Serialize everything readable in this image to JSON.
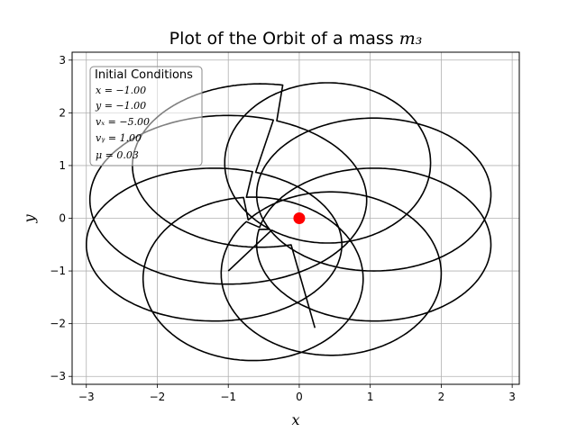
{
  "chart_data": {
    "type": "line",
    "title": "Plot of the Orbit of a mass ",
    "title_math": "m₃",
    "xlabel": "x",
    "ylabel": "y",
    "xlim": [
      -3.2,
      3.1
    ],
    "ylim": [
      -3.15,
      3.15
    ],
    "xticks": [
      -3,
      -2,
      -1,
      0,
      1,
      2,
      3
    ],
    "yticks": [
      -3,
      -2,
      -1,
      0,
      1,
      2,
      3
    ],
    "grid": true,
    "central_mass": {
      "x": 0,
      "y": 0,
      "color": "#ff0000"
    },
    "orbit": {
      "color": "#000000",
      "start": {
        "x": -1.0,
        "y": -1.0
      },
      "end": {
        "x": 0.22,
        "y": -2.08
      },
      "loops": [
        {
          "cx": 0.4,
          "cy": 1.05,
          "rx": 1.45,
          "ry": 1.52
        },
        {
          "cx": 1.05,
          "cy": 0.45,
          "rx": 1.65,
          "ry": 1.45
        },
        {
          "cx": 1.05,
          "cy": -0.5,
          "rx": 1.65,
          "ry": 1.45
        },
        {
          "cx": 0.45,
          "cy": -1.05,
          "rx": 1.55,
          "ry": 1.55
        },
        {
          "cx": -0.65,
          "cy": -1.15,
          "rx": 1.55,
          "ry": 1.55
        },
        {
          "cx": -1.2,
          "cy": -0.5,
          "rx": 1.8,
          "ry": 1.45
        },
        {
          "cx": -1.0,
          "cy": 0.35,
          "rx": 1.95,
          "ry": 1.6
        },
        {
          "cx": -0.55,
          "cy": 1.0,
          "rx": 1.8,
          "ry": 1.55
        }
      ]
    },
    "legend": {
      "placement": "top-left",
      "title": "Initial Conditions",
      "lines": [
        "x = −1.00",
        "y = −1.00",
        "vₓ = −5.00",
        "vᵧ = 1.00",
        "μ = 0.03"
      ]
    }
  }
}
